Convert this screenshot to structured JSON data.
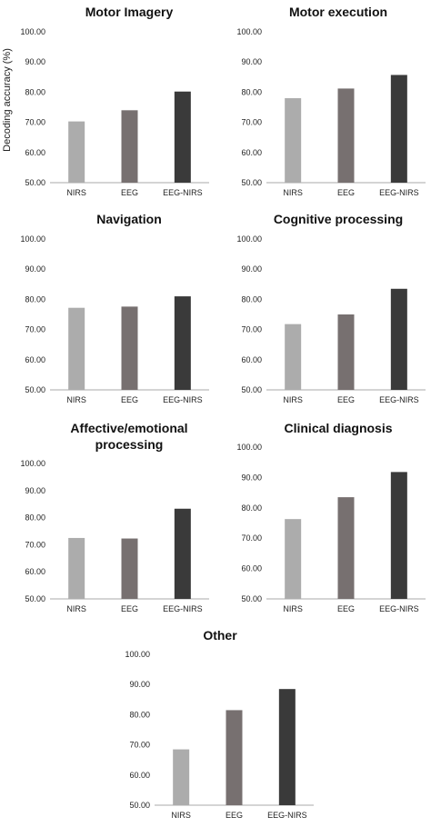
{
  "ylabel": "Decoding accuracy (%)",
  "colors": {
    "NIRS": "#acacac",
    "EEG": "#777070",
    "EEG-NIRS": "#3a3a3a",
    "axis": "#aaaaaa"
  },
  "chart_data": [
    {
      "type": "bar",
      "title": "Motor Imagery",
      "categories": [
        "NIRS",
        "EEG",
        "EEG-NIRS"
      ],
      "values": [
        70.3,
        74.0,
        80.2
      ],
      "ylim": [
        50,
        100
      ],
      "yticks": [
        "50.00",
        "60.00",
        "70.00",
        "80.00",
        "90.00",
        "100.00"
      ],
      "grid": false
    },
    {
      "type": "bar",
      "title": "Motor execution",
      "categories": [
        "NIRS",
        "EEG",
        "EEG-NIRS"
      ],
      "values": [
        78.0,
        81.2,
        85.7
      ],
      "ylim": [
        50,
        100
      ],
      "yticks": [
        "50.00",
        "60.00",
        "70.00",
        "80.00",
        "90.00",
        "100.00"
      ],
      "grid": false
    },
    {
      "type": "bar",
      "title": "Navigation",
      "categories": [
        "NIRS",
        "EEG",
        "EEG-NIRS"
      ],
      "values": [
        77.2,
        77.6,
        81.0
      ],
      "ylim": [
        50,
        100
      ],
      "yticks": [
        "50.00",
        "60.00",
        "70.00",
        "80.00",
        "90.00",
        "100.00"
      ],
      "grid": false
    },
    {
      "type": "bar",
      "title": "Cognitive processing",
      "categories": [
        "NIRS",
        "EEG",
        "EEG-NIRS"
      ],
      "values": [
        71.8,
        75.0,
        83.5
      ],
      "ylim": [
        50,
        100
      ],
      "yticks": [
        "50.00",
        "60.00",
        "70.00",
        "80.00",
        "90.00",
        "100.00"
      ],
      "grid": false
    },
    {
      "type": "bar",
      "title": "Affective/emotional processing",
      "categories": [
        "NIRS",
        "EEG",
        "EEG-NIRS"
      ],
      "values": [
        72.5,
        72.3,
        83.3
      ],
      "ylim": [
        50,
        100
      ],
      "yticks": [
        "50.00",
        "60.00",
        "70.00",
        "80.00",
        "90.00",
        "100.00"
      ],
      "grid": false
    },
    {
      "type": "bar",
      "title": "Clinical diagnosis",
      "categories": [
        "NIRS",
        "EEG",
        "EEG-NIRS"
      ],
      "values": [
        76.3,
        83.5,
        91.8
      ],
      "ylim": [
        50,
        100
      ],
      "yticks": [
        "50.00",
        "60.00",
        "70.00",
        "80.00",
        "90.00",
        "100.00"
      ],
      "grid": false
    },
    {
      "type": "bar",
      "title": "Other",
      "categories": [
        "NIRS",
        "EEG",
        "EEG-NIRS"
      ],
      "values": [
        68.5,
        81.5,
        88.5
      ],
      "ylim": [
        50,
        100
      ],
      "yticks": [
        "50.00",
        "60.00",
        "70.00",
        "80.00",
        "90.00",
        "100.00"
      ],
      "grid": false
    }
  ]
}
